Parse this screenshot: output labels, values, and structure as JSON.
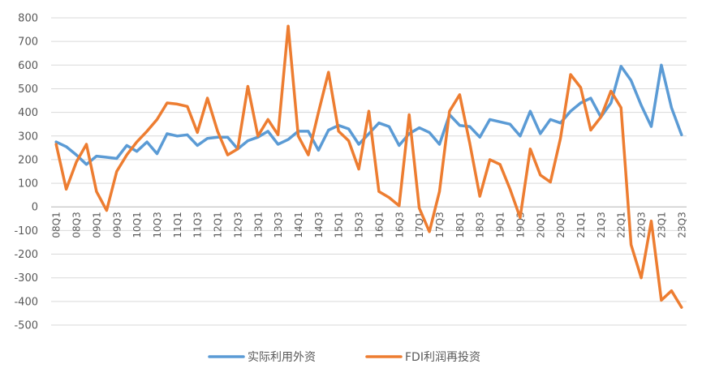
{
  "chart_data": {
    "type": "line",
    "title": "",
    "xlabel": "",
    "ylabel": "",
    "ylim": [
      -500,
      800
    ],
    "yticks": [
      800,
      700,
      600,
      500,
      400,
      300,
      200,
      100,
      0,
      -100,
      -200,
      -300,
      -400,
      -500
    ],
    "grid": "horizontal",
    "legend": "bottom",
    "categories": [
      "08Q1",
      "08Q2",
      "08Q3",
      "08Q4",
      "09Q1",
      "09Q2",
      "09Q3",
      "09Q4",
      "10Q1",
      "10Q2",
      "10Q3",
      "10Q4",
      "11Q1",
      "11Q2",
      "11Q3",
      "11Q4",
      "12Q1",
      "12Q2",
      "12Q3",
      "12Q4",
      "13Q1",
      "13Q2",
      "13Q3",
      "13Q4",
      "14Q1",
      "14Q2",
      "14Q3",
      "14Q4",
      "15Q1",
      "15Q2",
      "15Q3",
      "15Q4",
      "16Q1",
      "16Q2",
      "16Q3",
      "16Q4",
      "17Q1",
      "17Q2",
      "17Q3",
      "17Q4",
      "18Q1",
      "18Q2",
      "18Q3",
      "18Q4",
      "19Q1",
      "19Q2",
      "19Q3",
      "19Q4",
      "20Q1",
      "20Q2",
      "20Q3",
      "20Q4",
      "21Q1",
      "21Q2",
      "21Q3",
      "21Q4",
      "22Q1",
      "22Q2",
      "22Q3",
      "22Q4",
      "23Q1",
      "23Q2",
      "23Q3"
    ],
    "x_tick_labels": [
      "08Q1",
      "",
      "08Q3",
      "",
      "09Q1",
      "",
      "09Q3",
      "",
      "10Q1",
      "",
      "10Q3",
      "",
      "11Q1",
      "",
      "11Q3",
      "",
      "12Q1",
      "",
      "12Q3",
      "",
      "13Q1",
      "",
      "13Q3",
      "",
      "14Q1",
      "",
      "14Q3",
      "",
      "15Q1",
      "",
      "15Q3",
      "",
      "16Q1",
      "",
      "16Q3",
      "",
      "17Q1",
      "",
      "17Q3",
      "",
      "18Q1",
      "",
      "18Q3",
      "",
      "19Q1",
      "",
      "19Q3",
      "",
      "20Q1",
      "",
      "20Q3",
      "",
      "21Q1",
      "",
      "21Q3",
      "",
      "22Q1",
      "",
      "22Q3",
      "",
      "23Q1",
      "",
      "23Q3"
    ],
    "series": [
      {
        "name": "实际利用外资",
        "color": "#5b9bd5",
        "values": [
          275,
          255,
          220,
          180,
          215,
          210,
          205,
          260,
          235,
          275,
          225,
          310,
          300,
          305,
          260,
          290,
          295,
          295,
          245,
          280,
          295,
          320,
          265,
          285,
          320,
          320,
          240,
          325,
          345,
          330,
          265,
          310,
          355,
          340,
          260,
          310,
          335,
          315,
          265,
          390,
          345,
          340,
          295,
          370,
          360,
          350,
          300,
          405,
          310,
          370,
          355,
          405,
          440,
          460,
          380,
          440,
          595,
          535,
          430,
          340,
          600,
          420,
          305
        ]
      },
      {
        "name": "FDI利润再投资",
        "color": "#ed7d31",
        "values": [
          265,
          75,
          190,
          265,
          65,
          -15,
          150,
          220,
          275,
          320,
          370,
          440,
          435,
          425,
          315,
          460,
          320,
          220,
          245,
          510,
          300,
          370,
          305,
          765,
          300,
          220,
          400,
          570,
          320,
          280,
          160,
          405,
          65,
          40,
          5,
          390,
          -5,
          -105,
          65,
          405,
          475,
          270,
          45,
          200,
          180,
          75,
          -45,
          245,
          135,
          105,
          290,
          560,
          505,
          325,
          380,
          490,
          420,
          -160,
          -300,
          -60,
          -395,
          -355,
          -425
        ]
      }
    ]
  }
}
